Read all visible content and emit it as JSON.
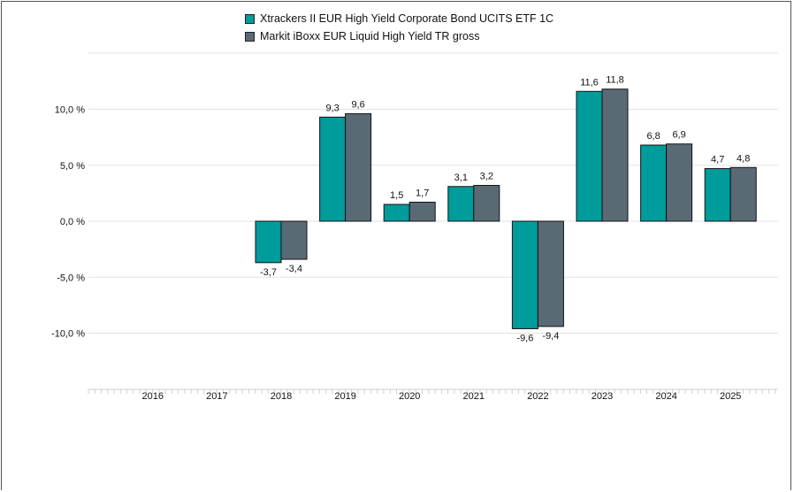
{
  "chart_data": {
    "type": "bar",
    "categories": [
      "2016",
      "2017",
      "2018",
      "2019",
      "2020",
      "2021",
      "2022",
      "2023",
      "2024",
      "2025"
    ],
    "series": [
      {
        "name": "Xtrackers II EUR High Yield Corporate Bond UCITS ETF 1C",
        "color": "#009B9B",
        "values": [
          null,
          null,
          -3.7,
          9.3,
          1.5,
          3.1,
          -9.6,
          11.6,
          6.8,
          4.7
        ],
        "labels": [
          "",
          "",
          "-3,7",
          "9,3",
          "1,5",
          "3,1",
          "-9,6",
          "11,6",
          "6,8",
          "4,7"
        ]
      },
      {
        "name": "Markit iBoxx EUR Liquid High Yield TR gross",
        "color": "#5A6A75",
        "values": [
          null,
          null,
          -3.4,
          9.6,
          1.7,
          3.2,
          -9.4,
          11.8,
          6.9,
          4.8
        ],
        "labels": [
          "",
          "",
          "-3,4",
          "9,6",
          "1,7",
          "3,2",
          "-9,4",
          "11,8",
          "6,9",
          "4,8"
        ]
      }
    ],
    "yticks": [
      10,
      5,
      0,
      -5,
      -10
    ],
    "ytick_labels": [
      "10,0 %",
      "5,0 %",
      "0,0 %",
      "-5,0 %",
      "-10,0 %"
    ],
    "ylim": [
      -15.5,
      15.2
    ],
    "grid": true,
    "legend": "top-center"
  }
}
